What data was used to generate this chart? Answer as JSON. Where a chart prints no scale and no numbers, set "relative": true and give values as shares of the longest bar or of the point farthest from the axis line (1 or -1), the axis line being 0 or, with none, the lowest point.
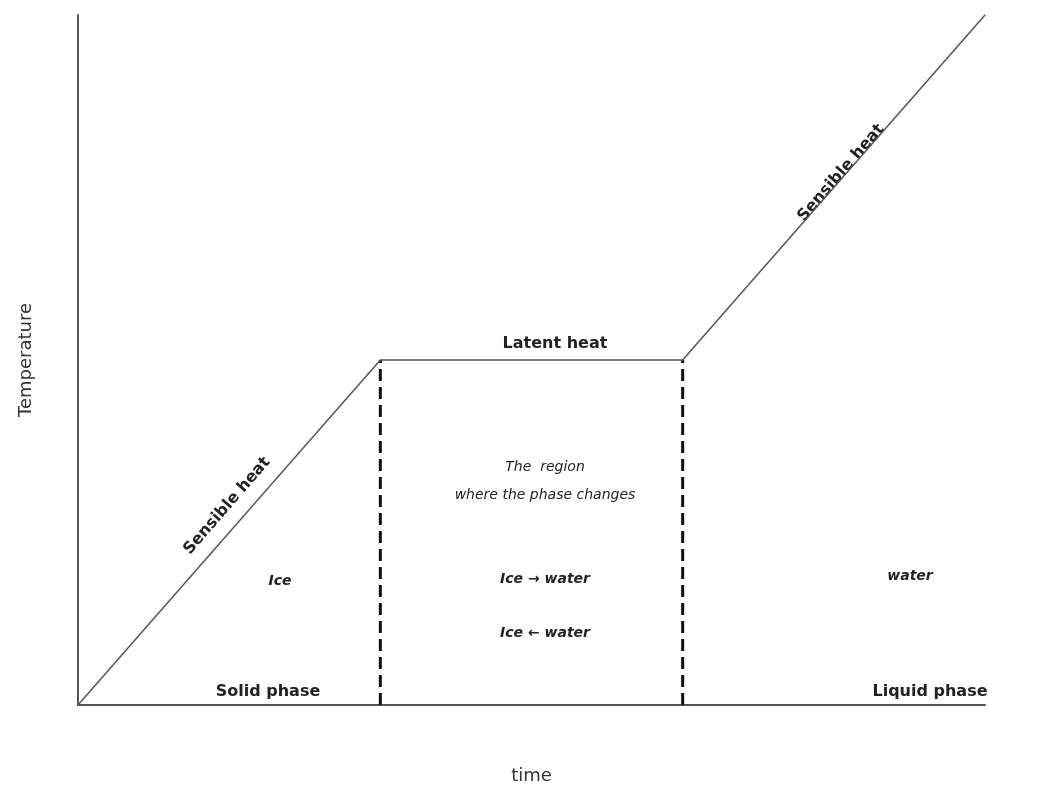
{
  "chart_data": {
    "type": "line",
    "relative": true,
    "xlabel": "time",
    "ylabel": "Temperature",
    "categories": [
      null,
      null,
      null,
      null
    ],
    "series": [
      {
        "color": "#555555",
        "values": [
          0,
          0.5,
          0.5,
          1
        ]
      }
    ],
    "marker": "none",
    "line_style": "solid",
    "grid": false,
    "annotations": [
      "Sensible heat",
      "Latent heat",
      "The  region\nwhere the phase changes",
      "Ice → water",
      "Ice ← water",
      "Ice",
      "water",
      "Solid phase",
      "Liquid phase",
      "Sensible heat"
    ]
  }
}
